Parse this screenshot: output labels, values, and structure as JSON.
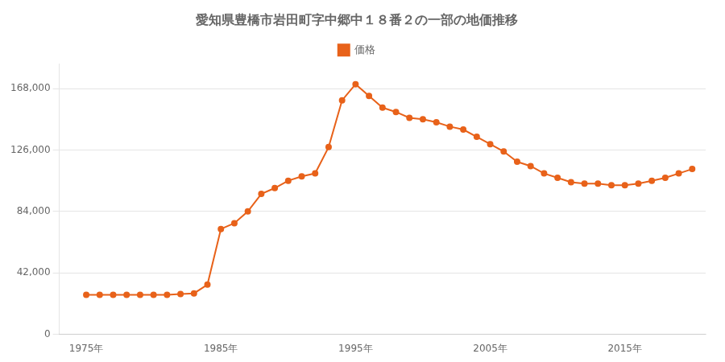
{
  "chart_data": {
    "type": "line",
    "title": "愛知県豊橋市岩田町字中郷中１８番２の一部の地価推移",
    "x": [
      1975,
      1976,
      1977,
      1978,
      1979,
      1980,
      1981,
      1982,
      1983,
      1984,
      1985,
      1986,
      1987,
      1988,
      1989,
      1990,
      1991,
      1992,
      1993,
      1994,
      1995,
      1996,
      1997,
      1998,
      1999,
      2000,
      2001,
      2002,
      2003,
      2004,
      2005,
      2006,
      2007,
      2008,
      2009,
      2010,
      2011,
      2012,
      2013,
      2014,
      2015,
      2016,
      2017,
      2018,
      2019,
      2020
    ],
    "series": [
      {
        "name": "価格",
        "color": "#E8621A",
        "marker": "circle",
        "values": [
          27000,
          27000,
          27000,
          27000,
          27000,
          27000,
          27000,
          27500,
          28000,
          34000,
          72000,
          76000,
          84000,
          96000,
          100000,
          105000,
          108000,
          110000,
          128000,
          160000,
          171000,
          163000,
          155000,
          152000,
          148000,
          147000,
          145000,
          142000,
          140000,
          135000,
          130000,
          125000,
          118000,
          115000,
          110000,
          107000,
          104000,
          103000,
          103000,
          102000,
          102000,
          103000,
          105000,
          107000,
          110000,
          113000
        ]
      }
    ],
    "xlim": [
      1973,
      2021
    ],
    "xticks": [
      {
        "value": 1975,
        "label": "1975年"
      },
      {
        "value": 1985,
        "label": "1985年"
      },
      {
        "value": 1995,
        "label": "1995年"
      },
      {
        "value": 2005,
        "label": "2005年"
      },
      {
        "value": 2015,
        "label": "2015年"
      }
    ],
    "ylim": [
      0,
      185000
    ],
    "yticks": [
      0,
      {
        "value": 42000,
        "label": "42,000"
      },
      {
        "value": 84000,
        "label": "84,000"
      },
      {
        "value": 126000,
        "label": "126,000"
      },
      {
        "value": 168000,
        "label": "168,000"
      }
    ],
    "grid": "y",
    "legend": "top"
  }
}
